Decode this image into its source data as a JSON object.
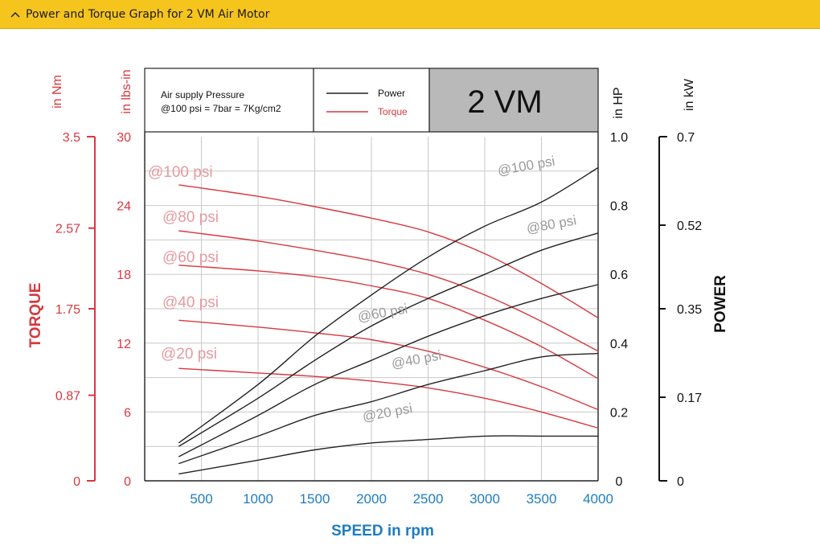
{
  "header": {
    "title": "Power and Torque Graph for 2 VM Air Motor",
    "chevron_icon": "chevron-up-icon"
  },
  "colors": {
    "accent_bar": "#f6c51d",
    "torque": "#d8383f",
    "power": "#222222",
    "xaxis_label": "#1e7dc1",
    "grid": "#c9c9c9",
    "model_box": "#b9b9b9"
  },
  "chart_data": {
    "type": "line",
    "model": "2 VM",
    "info_text_line1": "Air supply Pressure",
    "info_text_line2": "@100 psi = 7bar = 7Kg/cm2",
    "legend": [
      {
        "label": "Power",
        "color": "#222222"
      },
      {
        "label": "Torque",
        "color": "#d8383f"
      }
    ],
    "xlabel": "SPEED in rpm",
    "xlim": [
      0,
      4000
    ],
    "xticks": [
      500,
      1000,
      1500,
      2000,
      2500,
      3000,
      3500,
      4000
    ],
    "axes": {
      "torque_nm": {
        "unit_label": "in Nm",
        "title": "TORQUE",
        "ticks": [
          "0",
          "0.87",
          "1.75",
          "2.57",
          "3.5"
        ],
        "range": [
          0,
          3.5
        ]
      },
      "torque_lbsin": {
        "unit_label": "in lbs-in",
        "ticks": [
          "0",
          "6",
          "12",
          "18",
          "24",
          "30"
        ],
        "range": [
          0,
          30
        ]
      },
      "power_hp": {
        "unit_label": "in HP",
        "ticks": [
          "0",
          "0.2",
          "0.4",
          "0.6",
          "0.8",
          "1.0"
        ],
        "range": [
          0,
          1.0
        ]
      },
      "power_kw": {
        "unit_label": "in kW",
        "title": "POWER",
        "ticks": [
          "0",
          "0.17",
          "0.35",
          "0.52",
          "0.7"
        ],
        "range": [
          0,
          0.7
        ]
      }
    },
    "torque_series": [
      {
        "label": "@100 psi",
        "x": [
          300,
          1000,
          1500,
          2000,
          2500,
          3000,
          3500,
          4000
        ],
        "y": [
          25.8,
          24.8,
          23.9,
          22.9,
          21.7,
          19.8,
          17.2,
          14.2
        ]
      },
      {
        "label": "@80 psi",
        "x": [
          300,
          1000,
          1500,
          2000,
          2500,
          3000,
          3500,
          4000
        ],
        "y": [
          21.8,
          20.9,
          20.1,
          19.2,
          18.0,
          16.2,
          13.9,
          11.3
        ]
      },
      {
        "label": "@60 psi",
        "x": [
          300,
          1000,
          1500,
          2000,
          2500,
          3000,
          3500,
          4000
        ],
        "y": [
          18.8,
          18.3,
          17.8,
          17.0,
          15.9,
          14.0,
          11.7,
          8.9
        ]
      },
      {
        "label": "@40 psi",
        "x": [
          300,
          1000,
          1500,
          2000,
          2500,
          3000,
          3500,
          4000
        ],
        "y": [
          14.0,
          13.4,
          12.9,
          12.3,
          11.3,
          9.9,
          8.2,
          6.2
        ]
      },
      {
        "label": "@20 psi",
        "x": [
          300,
          1000,
          1500,
          2000,
          2500,
          3000,
          3500,
          4000
        ],
        "y": [
          9.8,
          9.4,
          9.1,
          8.7,
          8.1,
          7.2,
          6.0,
          4.6
        ]
      }
    ],
    "power_series": [
      {
        "label": "@100 psi",
        "x": [
          300,
          1000,
          1500,
          2000,
          2500,
          3000,
          3500,
          4000
        ],
        "y": [
          0.11,
          0.28,
          0.42,
          0.54,
          0.65,
          0.74,
          0.81,
          0.91
        ]
      },
      {
        "label": "@80 psi",
        "x": [
          300,
          1000,
          1500,
          2000,
          2500,
          3000,
          3500,
          4000
        ],
        "y": [
          0.1,
          0.24,
          0.35,
          0.45,
          0.53,
          0.6,
          0.67,
          0.72
        ]
      },
      {
        "label": "@60 psi",
        "x": [
          300,
          1000,
          1500,
          2000,
          2500,
          3000,
          3500,
          4000
        ],
        "y": [
          0.07,
          0.19,
          0.28,
          0.35,
          0.42,
          0.48,
          0.53,
          0.57
        ]
      },
      {
        "label": "@40 psi",
        "x": [
          300,
          1000,
          1500,
          2000,
          2500,
          3000,
          3500,
          4000
        ],
        "y": [
          0.05,
          0.13,
          0.19,
          0.23,
          0.28,
          0.32,
          0.36,
          0.37
        ]
      },
      {
        "label": "@20 psi",
        "x": [
          300,
          1000,
          1500,
          2000,
          2500,
          3000,
          3500,
          4000
        ],
        "y": [
          0.02,
          0.06,
          0.09,
          0.11,
          0.12,
          0.13,
          0.13,
          0.13
        ]
      }
    ]
  }
}
